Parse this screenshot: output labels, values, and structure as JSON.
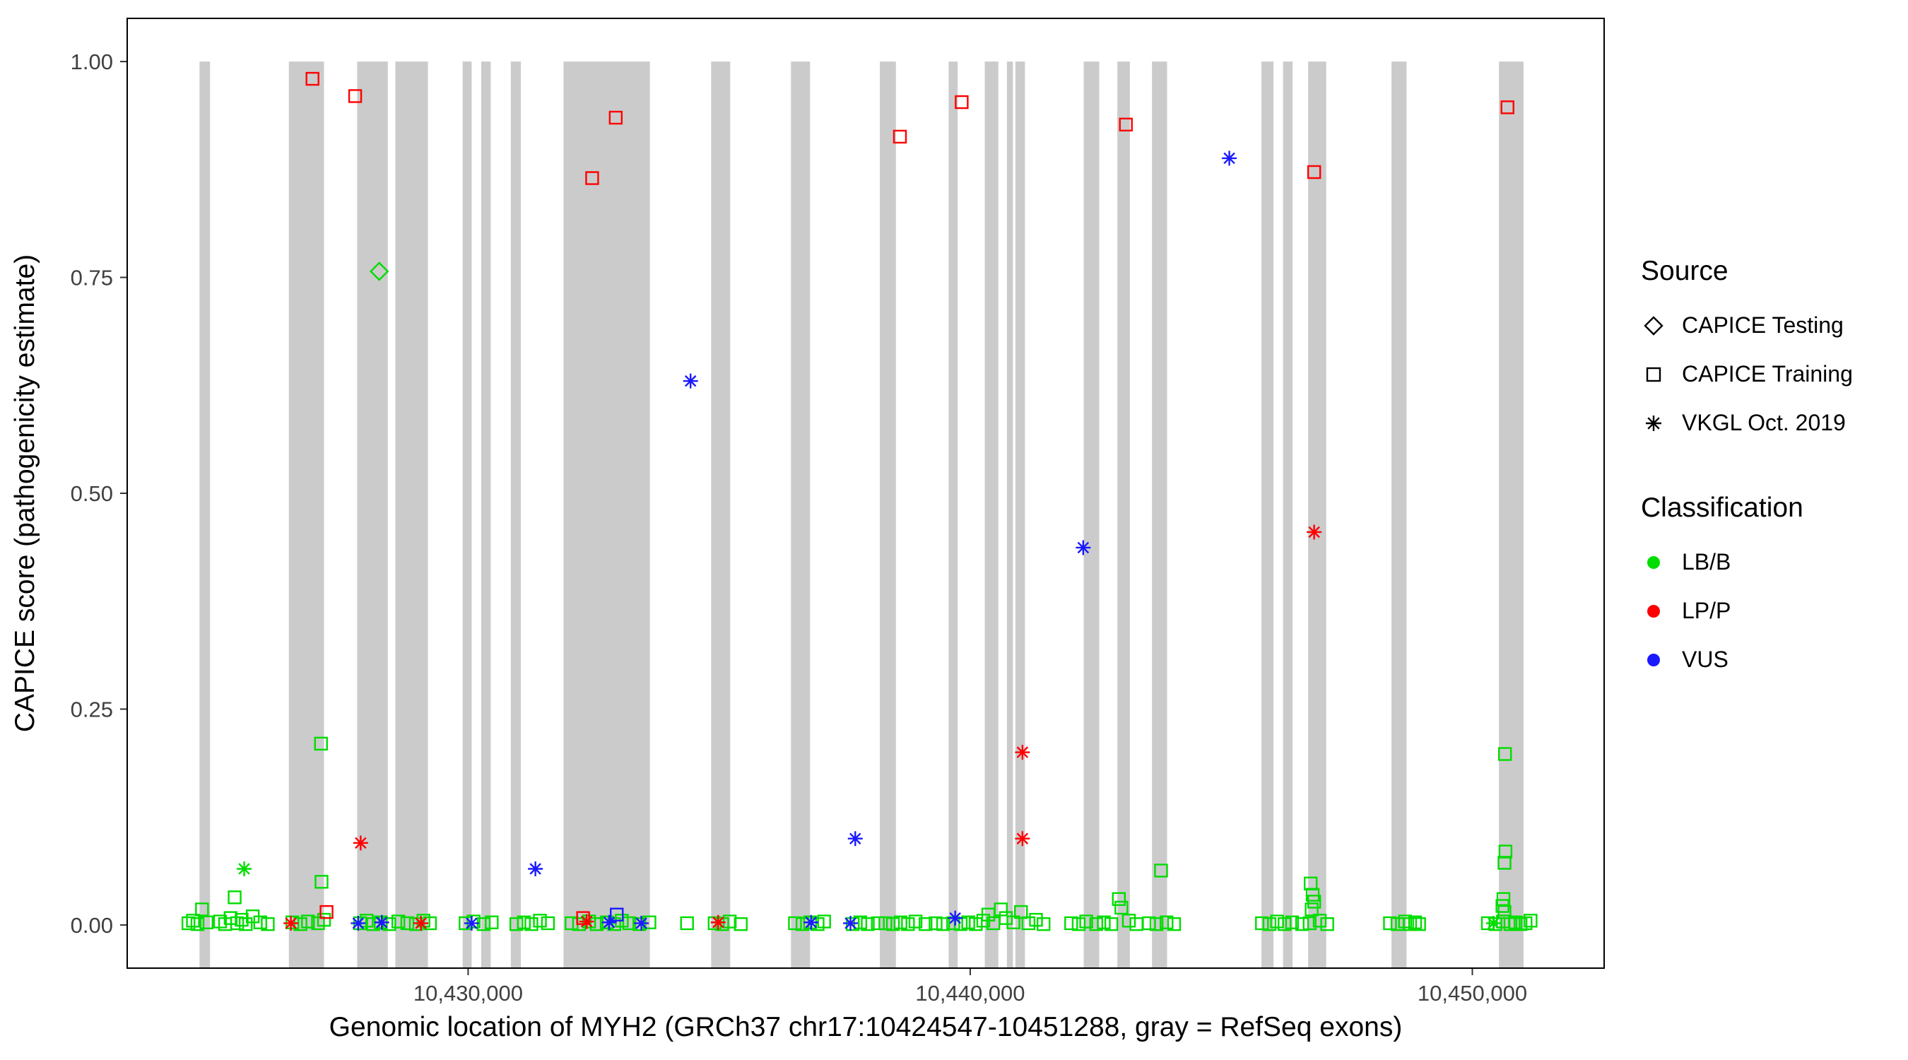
{
  "chart_data": {
    "type": "scatter",
    "title": "",
    "xlabel": "Genomic location of MYH2 (GRCh37 chr17:10424547-10451288, gray = RefSeq exons)",
    "ylabel": "CAPICE score (pathogenicity estimate)",
    "x_domain": [
      10423210,
      10452625
    ],
    "y_domain": [
      -0.05,
      1.05
    ],
    "x_ticks": [
      {
        "value": 10430000,
        "label": "10,430,000"
      },
      {
        "value": 10440000,
        "label": "10,440,000"
      },
      {
        "value": 10450000,
        "label": "10,450,000"
      }
    ],
    "y_ticks": [
      {
        "value": 0.0,
        "label": "0.00"
      },
      {
        "value": 0.25,
        "label": "0.25"
      },
      {
        "value": 0.5,
        "label": "0.50"
      },
      {
        "value": 0.75,
        "label": "0.75"
      },
      {
        "value": 1.0,
        "label": "1.00"
      }
    ],
    "grid": "off",
    "exon_color": "#CBCBCB",
    "exons": [
      [
        10424650,
        10424860
      ],
      [
        10426430,
        10427130
      ],
      [
        10427790,
        10428400
      ],
      [
        10428550,
        10429200
      ],
      [
        10429890,
        10430070
      ],
      [
        10430260,
        10430450
      ],
      [
        10430850,
        10431050
      ],
      [
        10431900,
        10433620
      ],
      [
        10434840,
        10435220
      ],
      [
        10436430,
        10436810
      ],
      [
        10438200,
        10438520
      ],
      [
        10439570,
        10439750
      ],
      [
        10440290,
        10440560
      ],
      [
        10440730,
        10440850
      ],
      [
        10440900,
        10441090
      ],
      [
        10442260,
        10442570
      ],
      [
        10442930,
        10443180
      ],
      [
        10443620,
        10443920
      ],
      [
        10445800,
        10446040
      ],
      [
        10446230,
        10446420
      ],
      [
        10446730,
        10447090
      ],
      [
        10448390,
        10448690
      ],
      [
        10450530,
        10451020
      ]
    ],
    "marker_codes": {
      "s": "CAPICE Training (open square)",
      "d": "CAPICE Testing (open diamond)",
      "a": "VKGL Oct. 2019 (asterisk)"
    },
    "class_codes": {
      "g": "LB/B",
      "r": "LP/P",
      "v": "VUS"
    },
    "classification_colors": {
      "g": "#00DD00",
      "r": "#FF0000",
      "v": "#1A1AFF"
    },
    "points_format": [
      "genomic_position_bp",
      "capice_score",
      "marker_code",
      "class_code"
    ],
    "points": [
      [
        10424430,
        0.002,
        "s",
        "g"
      ],
      [
        10424520,
        0.005,
        "s",
        "g"
      ],
      [
        10424610,
        0.001,
        "s",
        "g"
      ],
      [
        10424700,
        0.018,
        "s",
        "g"
      ],
      [
        10424790,
        0.003,
        "s",
        "g"
      ],
      [
        10425060,
        0.004,
        "s",
        "g"
      ],
      [
        10425160,
        0.001,
        "s",
        "g"
      ],
      [
        10425270,
        0.008,
        "s",
        "g"
      ],
      [
        10425350,
        0.032,
        "s",
        "g"
      ],
      [
        10425400,
        0.002,
        "s",
        "g"
      ],
      [
        10425490,
        0.006,
        "s",
        "g"
      ],
      [
        10425570,
        0.001,
        "s",
        "g"
      ],
      [
        10425710,
        0.01,
        "s",
        "g"
      ],
      [
        10425860,
        0.003,
        "s",
        "g"
      ],
      [
        10426010,
        0.001,
        "s",
        "g"
      ],
      [
        10426500,
        0.003,
        "s",
        "g"
      ],
      [
        10426660,
        0.001,
        "s",
        "g"
      ],
      [
        10426810,
        0.004,
        "s",
        "g"
      ],
      [
        10427010,
        0.002,
        "s",
        "g"
      ],
      [
        10427080,
        0.05,
        "s",
        "g"
      ],
      [
        10427070,
        0.21,
        "s",
        "g"
      ],
      [
        10427130,
        0.006,
        "s",
        "g"
      ],
      [
        10427850,
        0.002,
        "s",
        "g"
      ],
      [
        10427980,
        0.005,
        "s",
        "g"
      ],
      [
        10428110,
        0.001,
        "s",
        "g"
      ],
      [
        10428260,
        0.003,
        "s",
        "g"
      ],
      [
        10428430,
        0.001,
        "s",
        "g"
      ],
      [
        10428610,
        0.004,
        "s",
        "g"
      ],
      [
        10428790,
        0.002,
        "s",
        "g"
      ],
      [
        10428960,
        0.001,
        "s",
        "g"
      ],
      [
        10429110,
        0.005,
        "s",
        "g"
      ],
      [
        10429240,
        0.002,
        "s",
        "g"
      ],
      [
        10429950,
        0.002,
        "s",
        "g"
      ],
      [
        10430110,
        0.004,
        "s",
        "g"
      ],
      [
        10430310,
        0.001,
        "s",
        "g"
      ],
      [
        10430470,
        0.003,
        "s",
        "g"
      ],
      [
        10430960,
        0.001,
        "s",
        "g"
      ],
      [
        10431110,
        0.003,
        "s",
        "g"
      ],
      [
        10431260,
        0.001,
        "s",
        "g"
      ],
      [
        10431430,
        0.005,
        "s",
        "g"
      ],
      [
        10431590,
        0.002,
        "s",
        "g"
      ],
      [
        10432060,
        0.002,
        "s",
        "g"
      ],
      [
        10432210,
        0.001,
        "s",
        "g"
      ],
      [
        10432410,
        0.004,
        "s",
        "g"
      ],
      [
        10432560,
        0.001,
        "s",
        "g"
      ],
      [
        10432760,
        0.003,
        "s",
        "g"
      ],
      [
        10432910,
        0.001,
        "s",
        "g"
      ],
      [
        10433060,
        0.005,
        "s",
        "g"
      ],
      [
        10433210,
        0.002,
        "s",
        "g"
      ],
      [
        10433410,
        0.001,
        "s",
        "g"
      ],
      [
        10433610,
        0.003,
        "s",
        "g"
      ],
      [
        10434360,
        0.002,
        "s",
        "g"
      ],
      [
        10434910,
        0.002,
        "s",
        "g"
      ],
      [
        10435060,
        0.001,
        "s",
        "g"
      ],
      [
        10435210,
        0.004,
        "s",
        "g"
      ],
      [
        10435430,
        0.001,
        "s",
        "g"
      ],
      [
        10436510,
        0.002,
        "s",
        "g"
      ],
      [
        10436660,
        0.001,
        "s",
        "g"
      ],
      [
        10436810,
        0.003,
        "s",
        "g"
      ],
      [
        10436960,
        0.001,
        "s",
        "g"
      ],
      [
        10437090,
        0.004,
        "s",
        "g"
      ],
      [
        10437660,
        0.001,
        "s",
        "g"
      ],
      [
        10437810,
        0.003,
        "s",
        "g"
      ],
      [
        10437960,
        0.001,
        "s",
        "g"
      ],
      [
        10438160,
        0.002,
        "s",
        "g"
      ],
      [
        10438310,
        0.002,
        "s",
        "g"
      ],
      [
        10438460,
        0.001,
        "s",
        "g"
      ],
      [
        10438610,
        0.003,
        "s",
        "g"
      ],
      [
        10438760,
        0.001,
        "s",
        "g"
      ],
      [
        10438910,
        0.004,
        "s",
        "g"
      ],
      [
        10439110,
        0.001,
        "s",
        "g"
      ],
      [
        10439310,
        0.002,
        "s",
        "g"
      ],
      [
        10439460,
        0.001,
        "s",
        "g"
      ],
      [
        10439660,
        0.002,
        "s",
        "g"
      ],
      [
        10439810,
        0.001,
        "s",
        "g"
      ],
      [
        10439960,
        0.003,
        "s",
        "g"
      ],
      [
        10440110,
        0.001,
        "s",
        "g"
      ],
      [
        10440260,
        0.005,
        "s",
        "g"
      ],
      [
        10440360,
        0.012,
        "s",
        "g"
      ],
      [
        10440460,
        0.002,
        "s",
        "g"
      ],
      [
        10440610,
        0.018,
        "s",
        "g"
      ],
      [
        10440710,
        0.008,
        "s",
        "g"
      ],
      [
        10440860,
        0.003,
        "s",
        "g"
      ],
      [
        10441010,
        0.015,
        "s",
        "g"
      ],
      [
        10441160,
        0.002,
        "s",
        "g"
      ],
      [
        10441310,
        0.006,
        "s",
        "g"
      ],
      [
        10441460,
        0.001,
        "s",
        "g"
      ],
      [
        10442010,
        0.002,
        "s",
        "g"
      ],
      [
        10442160,
        0.001,
        "s",
        "g"
      ],
      [
        10442310,
        0.004,
        "s",
        "g"
      ],
      [
        10442510,
        0.001,
        "s",
        "g"
      ],
      [
        10442660,
        0.003,
        "s",
        "g"
      ],
      [
        10442810,
        0.001,
        "s",
        "g"
      ],
      [
        10442960,
        0.03,
        "s",
        "g"
      ],
      [
        10443010,
        0.02,
        "s",
        "g"
      ],
      [
        10443160,
        0.005,
        "s",
        "g"
      ],
      [
        10443310,
        0.001,
        "s",
        "g"
      ],
      [
        10443560,
        0.002,
        "s",
        "g"
      ],
      [
        10443710,
        0.001,
        "s",
        "g"
      ],
      [
        10443800,
        0.063,
        "s",
        "g"
      ],
      [
        10443910,
        0.003,
        "s",
        "g"
      ],
      [
        10444060,
        0.001,
        "s",
        "g"
      ],
      [
        10445810,
        0.002,
        "s",
        "g"
      ],
      [
        10445960,
        0.001,
        "s",
        "g"
      ],
      [
        10446110,
        0.004,
        "s",
        "g"
      ],
      [
        10446260,
        0.001,
        "s",
        "g"
      ],
      [
        10446410,
        0.003,
        "s",
        "g"
      ],
      [
        10446610,
        0.001,
        "s",
        "g"
      ],
      [
        10446760,
        0.002,
        "s",
        "g"
      ],
      [
        10446780,
        0.048,
        "s",
        "g"
      ],
      [
        10446820,
        0.035,
        "s",
        "g"
      ],
      [
        10446850,
        0.027,
        "s",
        "g"
      ],
      [
        10446800,
        0.018,
        "s",
        "g"
      ],
      [
        10446960,
        0.005,
        "s",
        "g"
      ],
      [
        10447110,
        0.001,
        "s",
        "g"
      ],
      [
        10448360,
        0.002,
        "s",
        "g"
      ],
      [
        10448510,
        0.001,
        "s",
        "g"
      ],
      [
        10448660,
        0.004,
        "s",
        "g"
      ],
      [
        10448760,
        0.001,
        "s",
        "g"
      ],
      [
        10448860,
        0.003,
        "s",
        "g"
      ],
      [
        10448940,
        0.001,
        "s",
        "g"
      ],
      [
        10450310,
        0.002,
        "s",
        "g"
      ],
      [
        10450460,
        0.001,
        "s",
        "g"
      ],
      [
        10450610,
        0.004,
        "s",
        "g"
      ],
      [
        10450620,
        0.03,
        "s",
        "g"
      ],
      [
        10450600,
        0.022,
        "s",
        "g"
      ],
      [
        10450640,
        0.015,
        "s",
        "g"
      ],
      [
        10450760,
        0.001,
        "s",
        "g"
      ],
      [
        10450860,
        0.003,
        "s",
        "g"
      ],
      [
        10450960,
        0.001,
        "s",
        "g"
      ],
      [
        10451060,
        0.002,
        "s",
        "g"
      ],
      [
        10451160,
        0.005,
        "s",
        "g"
      ],
      [
        10450650,
        0.198,
        "s",
        "g"
      ],
      [
        10450660,
        0.085,
        "s",
        "g"
      ],
      [
        10450640,
        0.072,
        "s",
        "g"
      ],
      [
        10425540,
        0.065,
        "a",
        "g"
      ],
      [
        10450420,
        0.002,
        "a",
        "g"
      ],
      [
        10428230,
        0.757,
        "d",
        "g"
      ],
      [
        10427810,
        0.002,
        "a",
        "v"
      ],
      [
        10428280,
        0.003,
        "a",
        "v"
      ],
      [
        10430070,
        0.002,
        "a",
        "v"
      ],
      [
        10431340,
        0.065,
        "a",
        "v"
      ],
      [
        10432810,
        0.003,
        "a",
        "v"
      ],
      [
        10433450,
        0.002,
        "a",
        "v"
      ],
      [
        10434430,
        0.63,
        "a",
        "v"
      ],
      [
        10436830,
        0.003,
        "a",
        "v"
      ],
      [
        10437615,
        0.002,
        "a",
        "v"
      ],
      [
        10437710,
        0.1,
        "a",
        "v"
      ],
      [
        10439700,
        0.008,
        "a",
        "v"
      ],
      [
        10442250,
        0.437,
        "a",
        "v"
      ],
      [
        10445160,
        0.888,
        "a",
        "v"
      ],
      [
        10432960,
        0.012,
        "s",
        "v"
      ],
      [
        10426470,
        0.002,
        "a",
        "r"
      ],
      [
        10427860,
        0.095,
        "a",
        "r"
      ],
      [
        10429060,
        0.002,
        "a",
        "r"
      ],
      [
        10432360,
        0.004,
        "a",
        "r"
      ],
      [
        10434980,
        0.003,
        "a",
        "r"
      ],
      [
        10441040,
        0.2,
        "a",
        "r"
      ],
      [
        10441040,
        0.1,
        "a",
        "r"
      ],
      [
        10446850,
        0.455,
        "a",
        "r"
      ],
      [
        10427180,
        0.015,
        "s",
        "r"
      ],
      [
        10432290,
        0.008,
        "s",
        "r"
      ],
      [
        10426900,
        0.98,
        "s",
        "r"
      ],
      [
        10427750,
        0.96,
        "s",
        "r"
      ],
      [
        10432470,
        0.865,
        "s",
        "r"
      ],
      [
        10432940,
        0.935,
        "s",
        "r"
      ],
      [
        10438600,
        0.913,
        "s",
        "r"
      ],
      [
        10439830,
        0.953,
        "s",
        "r"
      ],
      [
        10443100,
        0.927,
        "s",
        "r"
      ],
      [
        10446850,
        0.872,
        "s",
        "r"
      ],
      [
        10450700,
        0.947,
        "s",
        "r"
      ]
    ]
  },
  "legend": {
    "source_title": "Source",
    "source_items": [
      {
        "label": "CAPICE Testing",
        "marker": "diamond"
      },
      {
        "label": "CAPICE Training",
        "marker": "square"
      },
      {
        "label": "VKGL Oct. 2019",
        "marker": "asterisk"
      }
    ],
    "classification_title": "Classification",
    "classification_items": [
      {
        "label": "LB/B",
        "color": "#00DD00"
      },
      {
        "label": "LP/P",
        "color": "#FF0000"
      },
      {
        "label": "VUS",
        "color": "#1A1AFF"
      }
    ]
  }
}
